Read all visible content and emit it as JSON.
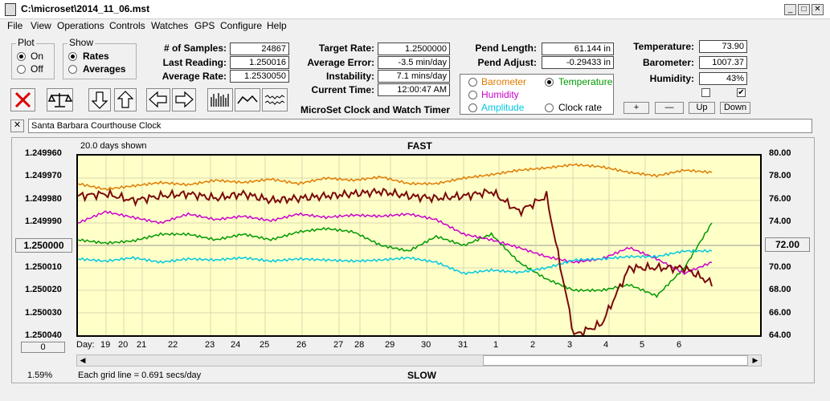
{
  "window": {
    "title": "C:\\microset\\2014_11_06.mst"
  },
  "menu": [
    "File",
    "View",
    "Operations",
    "Controls",
    "Watches",
    "GPS",
    "Configure",
    "Help"
  ],
  "plot": {
    "title": "Plot",
    "on": "On",
    "off": "Off",
    "selected": "On"
  },
  "show": {
    "title": "Show",
    "rates": "Rates",
    "averages": "Averages",
    "selected": "Rates"
  },
  "stats": {
    "samples_label": "# of Samples:",
    "samples": "24867",
    "last_label": "Last Reading:",
    "last": "1.250016",
    "avg_label": "Average Rate:",
    "avg": "1.2530050",
    "target_label": "Target Rate:",
    "target": "1.2500000",
    "avgerr_label": "Average Error:",
    "avgerr": "-3.5 min/day",
    "instab_label": "Instability:",
    "instab": "7.1 mins/day",
    "time_label": "Current Time:",
    "time": "12:00:47 AM",
    "pendlen_label": "Pend Length:",
    "pendlen": "61.144 in",
    "pendadj_label": "Pend Adjust:",
    "pendadj": "-0.29433 in",
    "temp_label": "Temperature:",
    "temp": "73.90",
    "baro_label": "Barometer:",
    "baro": "1007.37",
    "hum_label": "Humidity:",
    "hum": "43%"
  },
  "app_caption": "MicroSet Clock and Watch Timer",
  "aux": {
    "barometer": "Barometer",
    "temperature": "Temperature",
    "humidity": "Humidity",
    "amplitude": "Amplitude",
    "clockrate": "Clock rate",
    "selected": "Temperature",
    "colors": {
      "barometer": "#e07b00",
      "temperature": "#009900",
      "humidity": "#cc00cc",
      "amplitude": "#00c8e0",
      "clockrate": "#000000"
    }
  },
  "scale_buttons": {
    "plus": "+",
    "minus": "—",
    "up": "Up",
    "down": "Down"
  },
  "clock_name": "Santa Barbara Courthouse Clock",
  "chart_header": {
    "days_shown": "20.0 days shown",
    "fast": "FAST",
    "slow": "SLOW",
    "grid_note": "Each grid line = 0.691 secs/day",
    "percent": "1.59%",
    "day_label": "Day:"
  },
  "left_buttons": {
    "center": "1.250000",
    "zero": "0"
  },
  "right_button": "72.00",
  "chart_data": {
    "type": "line",
    "y_left_ticks": [
      "1.249960",
      "1.249970",
      "1.249980",
      "1.249990",
      "1.250000",
      "1.250010",
      "1.250020",
      "1.250030",
      "1.250040"
    ],
    "y_right_ticks": [
      "80.00",
      "78.00",
      "76.00",
      "74.00",
      "72.00",
      "70.00",
      "68.00",
      "66.00",
      "64.00"
    ],
    "ylim_left": [
      1.24996,
      1.25004
    ],
    "ylim_right": [
      64,
      80
    ],
    "x_ticks": [
      "19",
      "20",
      "21",
      "22",
      "23",
      "24",
      "25",
      "26",
      "27",
      "28",
      "29",
      "30",
      "31",
      "1",
      "2",
      "3",
      "4",
      "5",
      "6"
    ],
    "series": [
      {
        "name": "Barometer",
        "color": "#e07b00",
        "axis": "right",
        "values": [
          77.5,
          77.0,
          77.3,
          77.6,
          77.4,
          77.8,
          77.6,
          77.9,
          77.5,
          78.0,
          77.8,
          78.1,
          77.5,
          77.5,
          78.0,
          78.3,
          78.7,
          78.9,
          79.2,
          79.0,
          78.5,
          78.2,
          78.7,
          78.5
        ]
      },
      {
        "name": "Temperature",
        "color": "#009900",
        "axis": "right",
        "values": [
          72.5,
          72.2,
          72.4,
          73.0,
          73.0,
          72.5,
          73.0,
          72.5,
          73.2,
          73.5,
          73.2,
          72.0,
          71.5,
          72.8,
          72.0,
          73.0,
          70.5,
          69.0,
          68.0,
          68.0,
          68.5,
          67.5,
          70.0,
          74.0
        ]
      },
      {
        "name": "Humidity",
        "color": "#cc00cc",
        "axis": "right",
        "values": [
          74.0,
          75.0,
          74.5,
          74.0,
          74.8,
          74.3,
          74.6,
          74.2,
          74.8,
          74.5,
          74.7,
          74.6,
          74.8,
          74.3,
          73.0,
          72.5,
          71.8,
          71.0,
          70.5,
          70.8,
          71.8,
          70.8,
          69.5,
          70.5
        ]
      },
      {
        "name": "Amplitude",
        "color": "#00c8e0",
        "axis": "right",
        "values": [
          70.8,
          70.6,
          70.9,
          70.5,
          70.8,
          70.7,
          70.9,
          70.6,
          70.8,
          70.7,
          70.6,
          70.7,
          70.9,
          70.5,
          69.5,
          69.8,
          69.6,
          70.0,
          70.7,
          70.8,
          71.0,
          71.0,
          71.5,
          71.5
        ]
      },
      {
        "name": "Clock rate",
        "color": "#7a0a0a",
        "axis": "left",
        "values": [
          1.249978,
          1.249977,
          1.24998,
          1.249978,
          1.249977,
          1.249979,
          1.249977,
          1.24998,
          1.249979,
          1.249978,
          1.249977,
          1.249976,
          1.249978,
          1.249979,
          1.249978,
          1.249976,
          1.249985,
          1.249978,
          1.25004,
          1.250035,
          1.25001,
          1.25001,
          1.25001,
          1.250017
        ]
      }
    ]
  }
}
